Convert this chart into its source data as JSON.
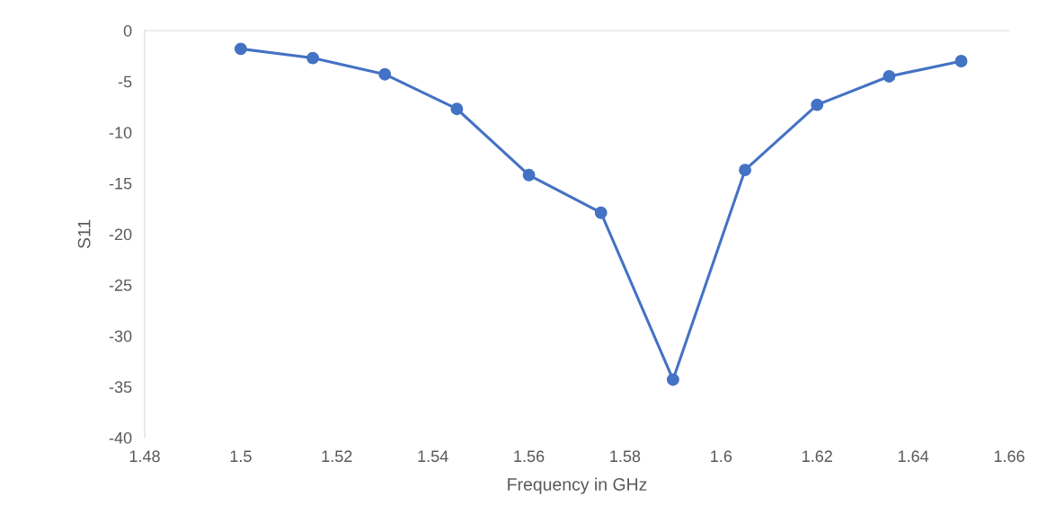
{
  "chart_data": {
    "type": "line",
    "xlabel": "Frequency in GHz",
    "ylabel": "S11",
    "x": [
      1.5,
      1.515,
      1.53,
      1.545,
      1.56,
      1.575,
      1.59,
      1.605,
      1.62,
      1.635,
      1.65
    ],
    "series": [
      {
        "color": "#4472c4",
        "values": [
          -1.8,
          -2.7,
          -4.3,
          -7.7,
          -14.2,
          -17.9,
          -34.3,
          -13.7,
          -7.3,
          -4.5,
          -3.0
        ]
      }
    ],
    "xlim": [
      1.48,
      1.66
    ],
    "xticks": [
      1.48,
      1.5,
      1.52,
      1.54,
      1.56,
      1.58,
      1.6,
      1.62,
      1.64,
      1.66
    ],
    "ylim": [
      -40,
      0
    ],
    "yticks": [
      -40,
      -35,
      -30,
      -25,
      -20,
      -15,
      -10,
      -5,
      0
    ],
    "grid": false,
    "legend": false,
    "marker": "circle",
    "line_style": "solid"
  }
}
